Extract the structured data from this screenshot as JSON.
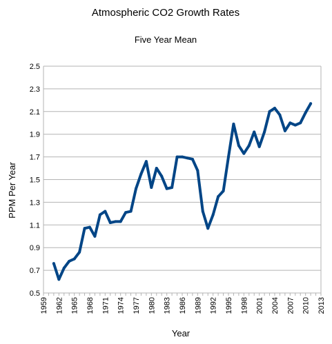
{
  "chart_data": {
    "type": "line",
    "title": "Atmospheric CO2 Growth Rates",
    "subtitle": "Five Year Mean",
    "xlabel": "Year",
    "ylabel": "PPM Per Year",
    "xlim": [
      1959,
      2013
    ],
    "ylim": [
      0.5,
      2.5
    ],
    "x_ticks": [
      "1959",
      "1962",
      "1965",
      "1968",
      "1971",
      "1974",
      "1977",
      "1980",
      "1983",
      "1986",
      "1989",
      "1992",
      "1995",
      "1998",
      "2001",
      "2004",
      "2007",
      "2010",
      "2013"
    ],
    "y_ticks": [
      "0.5",
      "0.7",
      "0.9",
      "1.1",
      "1.3",
      "1.5",
      "1.7",
      "1.9",
      "2.1",
      "2.3",
      "2.5"
    ],
    "grid": "horizontal",
    "line_color": "#004586",
    "x": [
      1961,
      1962,
      1963,
      1964,
      1965,
      1966,
      1967,
      1968,
      1969,
      1970,
      1971,
      1972,
      1973,
      1974,
      1975,
      1976,
      1977,
      1978,
      1979,
      1980,
      1981,
      1982,
      1983,
      1984,
      1985,
      1986,
      1987,
      1988,
      1989,
      1990,
      1991,
      1992,
      1993,
      1994,
      1995,
      1996,
      1997,
      1998,
      1999,
      2000,
      2001,
      2002,
      2003,
      2004,
      2005,
      2006,
      2007,
      2008,
      2009,
      2010,
      2011
    ],
    "values": [
      0.76,
      0.62,
      0.72,
      0.78,
      0.8,
      0.86,
      1.07,
      1.08,
      1.0,
      1.19,
      1.22,
      1.12,
      1.13,
      1.13,
      1.21,
      1.22,
      1.42,
      1.55,
      1.66,
      1.43,
      1.6,
      1.53,
      1.42,
      1.43,
      1.7,
      1.7,
      1.69,
      1.68,
      1.58,
      1.22,
      1.07,
      1.19,
      1.35,
      1.4,
      1.7,
      1.99,
      1.8,
      1.73,
      1.8,
      1.92,
      1.79,
      1.92,
      2.1,
      2.13,
      2.07,
      1.93,
      2.0,
      1.98,
      2.0,
      2.09,
      2.17
    ]
  }
}
